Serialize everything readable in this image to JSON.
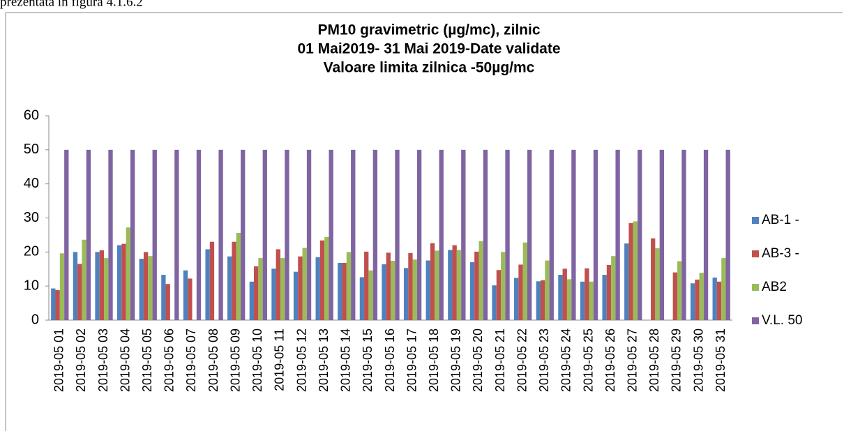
{
  "page_text": "prezentata in figura 4.1.6.2",
  "chart_data": {
    "type": "bar",
    "title": [
      "PM10 gravimetric (µg/mc), zilnic",
      "01 Mai2019- 31 Mai 2019-Date validate",
      "Valoare limita zilnica -50µg/mc"
    ],
    "categories": [
      "2019-05 01",
      "2019-05 02",
      "2019-05 03",
      "2019-05 04",
      "2019-05 05",
      "2019-05 06",
      "2019-05 07",
      "2019-05 08",
      "2019-05 09",
      "2019-05 10",
      "2019-05 11",
      "2019-05 12",
      "2019-05 13",
      "2019-05 14",
      "2019-05 15",
      "2019-05 16",
      "2019-05 17",
      "2019-05 18",
      "2019-05 19",
      "2019-05 20",
      "2019-05 21",
      "2019-05 22",
      "2019-05 23",
      "2019-05 24",
      "2019-05 25",
      "2019-05 26",
      "2019-05 27",
      "2019-05 28",
      "2019-05 29",
      "2019-05 30",
      "2019-05 31"
    ],
    "series": [
      {
        "name": "AB-1 -",
        "color": "#4f81bd",
        "values": [
          9.3,
          20,
          20,
          22,
          18,
          13.3,
          14.6,
          20.8,
          18.7,
          11.3,
          15.1,
          14.2,
          18.5,
          16.8,
          12.6,
          16.4,
          15.3,
          17.5,
          20.6,
          17,
          10.2,
          12.4,
          11.4,
          13.3,
          11.3,
          13.3,
          22.5,
          null,
          null,
          10.8,
          12.5
        ]
      },
      {
        "name": "AB-3 -",
        "color": "#c0504d",
        "values": [
          8.8,
          16.5,
          20.5,
          22.4,
          20,
          10.6,
          12.2,
          23,
          23,
          15.8,
          20.8,
          18.7,
          23.4,
          16.8,
          20.1,
          19.8,
          19.7,
          22.6,
          22,
          20.1,
          14.7,
          16.3,
          11.7,
          15.1,
          15.2,
          16.2,
          28.5,
          24,
          14,
          11.9,
          11.3
        ]
      },
      {
        "name": "AB2",
        "color": "#9bbb59",
        "values": [
          19.6,
          23.6,
          18.2,
          27.2,
          18.8,
          null,
          null,
          null,
          25.6,
          18.2,
          18.2,
          21.2,
          24.4,
          20,
          14.6,
          17.4,
          17.8,
          20.4,
          20.6,
          23.2,
          20,
          22.8,
          17.5,
          12,
          11.3,
          18.8,
          29,
          21.1,
          17.3,
          13.9,
          18.2
        ]
      },
      {
        "name": "V.L. 50",
        "color": "#8064a2",
        "values": [
          50,
          50,
          50,
          50,
          50,
          50,
          50,
          50,
          50,
          50,
          50,
          50,
          50,
          50,
          50,
          50,
          50,
          50,
          50,
          50,
          50,
          50,
          50,
          50,
          50,
          50,
          50,
          50,
          50,
          50,
          50
        ]
      }
    ],
    "ylim": [
      0,
      60
    ],
    "yticks": [
      0,
      10,
      20,
      30,
      40,
      50,
      60
    ],
    "grid": false,
    "legend": "right"
  }
}
